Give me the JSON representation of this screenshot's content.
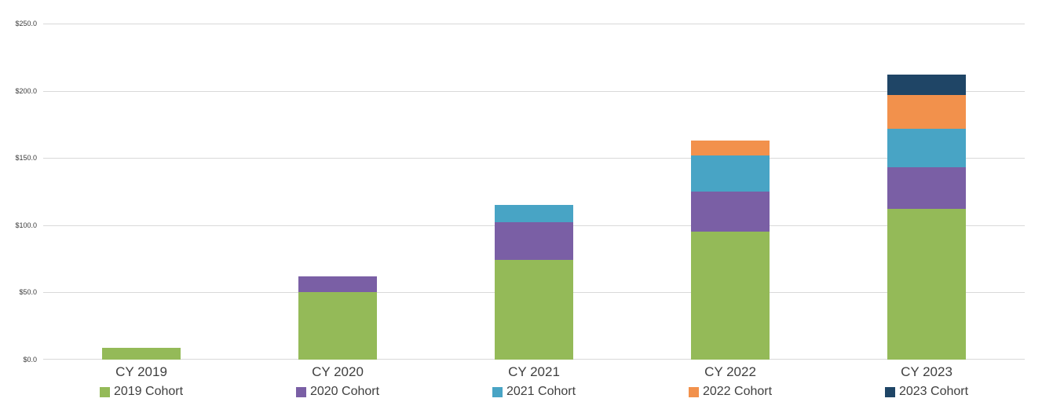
{
  "chart_data": {
    "type": "bar",
    "stacked": true,
    "title": "",
    "xlabel": "",
    "ylabel": "",
    "grid": true,
    "legend_position": "bottom",
    "categories": [
      "CY 2019",
      "CY 2020",
      "CY 2021",
      "CY 2022",
      "CY 2023"
    ],
    "series": [
      {
        "name": "2019 Cohort",
        "color": "#94ba58",
        "values": [
          9,
          50,
          74,
          95,
          112
        ]
      },
      {
        "name": "2020 Cohort",
        "color": "#7a5fa5",
        "values": [
          0,
          12,
          28,
          30,
          31
        ]
      },
      {
        "name": "2021 Cohort",
        "color": "#48a4c5",
        "values": [
          0,
          0,
          13,
          27,
          29
        ]
      },
      {
        "name": "2022 Cohort",
        "color": "#f2914c",
        "values": [
          0,
          0,
          0,
          11,
          25
        ]
      },
      {
        "name": "2023 Cohort",
        "color": "#1f4566",
        "values": [
          0,
          0,
          0,
          0,
          15
        ]
      }
    ],
    "y_axis": {
      "min": 0,
      "max": 250,
      "step": 50,
      "tick_labels": [
        "$0.0",
        "$50.0",
        "$100.0",
        "$150.0",
        "$200.0",
        "$250.0"
      ]
    }
  },
  "colors": {
    "gridline": "#d9d9d9",
    "axis_text": "#3f3f3f",
    "tick_text": "#3a3a3a",
    "background": "#ffffff"
  }
}
